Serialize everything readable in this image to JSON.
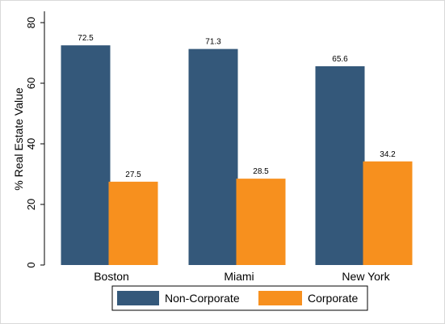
{
  "chart_data": {
    "type": "bar",
    "categories": [
      "Boston",
      "Miami",
      "New York"
    ],
    "series": [
      {
        "name": "Non-Corporate",
        "color": "#34587a",
        "values": [
          72.5,
          71.3,
          65.6
        ]
      },
      {
        "name": "Corporate",
        "color": "#f7901e",
        "values": [
          27.5,
          28.5,
          34.2
        ]
      }
    ],
    "data_labels": [
      [
        "72.5",
        "71.3",
        "65.6"
      ],
      [
        "27.5",
        "28.5",
        "34.2"
      ]
    ],
    "ylabel": "% Real Estate Value",
    "ylim": [
      0,
      80
    ],
    "yticks": [
      0,
      20,
      40,
      60,
      80
    ],
    "ytick_labels": [
      "0",
      "20",
      "40",
      "60",
      "80"
    ],
    "grid": false,
    "legend_position": "bottom"
  }
}
